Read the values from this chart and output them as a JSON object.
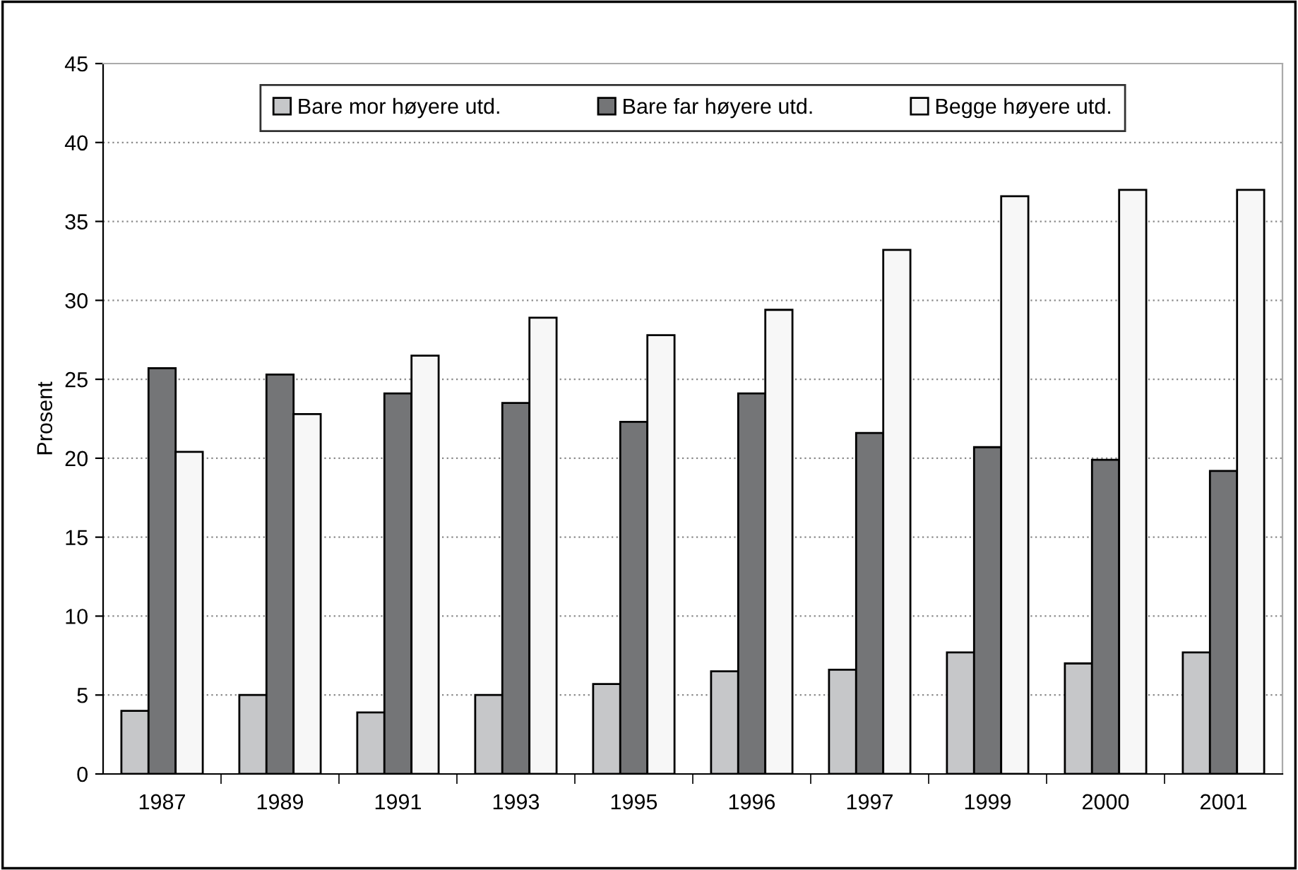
{
  "chart_data": {
    "type": "bar",
    "ylabel": "Prosent",
    "categories": [
      "1987",
      "1989",
      "1991",
      "1993",
      "1995",
      "1996",
      "1997",
      "1999",
      "2000",
      "2001"
    ],
    "series": [
      {
        "name": "Bare mor høyere utd.",
        "color": "#c6c7c9",
        "values": [
          4.0,
          5.0,
          3.9,
          5.0,
          5.7,
          6.5,
          6.6,
          7.7,
          7.0,
          7.7
        ]
      },
      {
        "name": "Bare far høyere utd.",
        "color": "#747577",
        "values": [
          25.7,
          25.3,
          24.1,
          23.5,
          22.3,
          24.1,
          21.6,
          20.7,
          19.9,
          19.2
        ]
      },
      {
        "name": "Begge høyere utd.",
        "color": "#f7f7f7",
        "values": [
          20.4,
          22.8,
          26.5,
          28.9,
          27.8,
          29.4,
          33.2,
          36.6,
          37.0,
          37.0
        ]
      }
    ],
    "ylim": [
      0,
      45
    ],
    "yticks": [
      0,
      5,
      10,
      15,
      20,
      25,
      30,
      35,
      40,
      45
    ],
    "grid": "y",
    "legend": "top"
  }
}
